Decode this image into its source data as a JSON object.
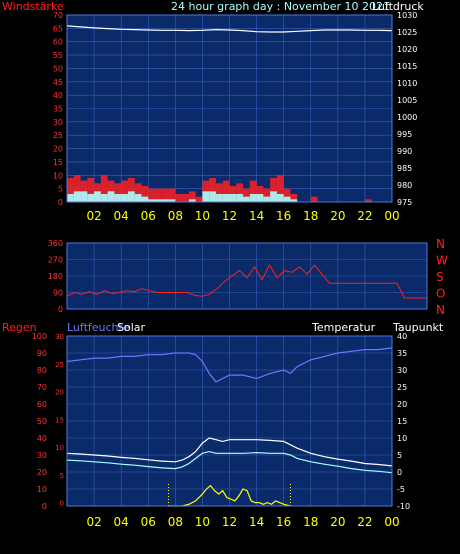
{
  "colors": {
    "background": "#000000",
    "plot_bg": "#0b2a6a",
    "grid": "#3a5fbf",
    "frame": "#4a7ae0",
    "wind": "#ff2020",
    "gust": "#ffffff",
    "pressure": "#ffffff",
    "humidity": "#6a78ff",
    "temperature": "#ffffff",
    "dewpoint": "#a8ffff",
    "solar": "#ffff00",
    "rain": "#ff2020",
    "left_tick": "#ff3030",
    "x_tick": "#ffff00",
    "right_tick": "#ffffff",
    "title": "#a8ffff"
  },
  "chart_data": [
    {
      "type": "line",
      "title": "24 hour graph day : November 10 2021",
      "ylabel_left": "Windstärke",
      "ylabel_right": "Luftdruck",
      "ylim_left": [
        0,
        70
      ],
      "ylim_right": [
        975,
        1030
      ],
      "yticks_left": [
        "0",
        "5",
        "10",
        "15",
        "20",
        "25",
        "30",
        "35",
        "40",
        "45",
        "50",
        "55",
        "60",
        "65",
        "70"
      ],
      "yticks_right": [
        "975",
        "980",
        "985",
        "990",
        "995",
        "1000",
        "1005",
        "1010",
        "1015",
        "1020",
        "1025",
        "1030"
      ],
      "xlim": [
        0,
        24
      ],
      "xticks": [
        "02",
        "04",
        "06",
        "08",
        "10",
        "12",
        "14",
        "16",
        "18",
        "20",
        "22",
        "00"
      ],
      "series": [
        {
          "name": "Luftdruck",
          "axis": "right",
          "color": "#ffffff",
          "x": [
            0,
            1,
            2,
            3,
            4,
            5,
            6,
            7,
            8,
            9,
            10,
            11,
            12,
            13,
            14,
            15,
            16,
            17,
            18,
            19,
            20,
            21,
            22,
            23,
            24
          ],
          "y": [
            1026.8,
            1026.5,
            1026.2,
            1026.0,
            1025.8,
            1025.7,
            1025.6,
            1025.5,
            1025.5,
            1025.4,
            1025.5,
            1025.7,
            1025.6,
            1025.4,
            1025.1,
            1025.0,
            1025.0,
            1025.2,
            1025.4,
            1025.6,
            1025.6,
            1025.6,
            1025.5,
            1025.5,
            1025.4
          ]
        },
        {
          "name": "Wind",
          "axis": "left",
          "color": "#ff2020",
          "x": [
            0,
            0.5,
            1,
            1.5,
            2,
            2.5,
            3,
            3.5,
            4,
            4.5,
            5,
            5.5,
            6,
            6.5,
            7,
            7.5,
            8,
            8.5,
            9,
            9.5,
            10,
            10.5,
            11,
            11.5,
            12,
            12.5,
            13,
            13.5,
            14,
            14.5,
            15,
            15.5,
            16,
            16.5,
            17,
            17.5,
            18,
            18.5,
            19,
            20,
            21,
            22,
            23,
            24
          ],
          "y": [
            9,
            10,
            8,
            9,
            7,
            10,
            8,
            7,
            8,
            9,
            7,
            6,
            5,
            5,
            5,
            5,
            3,
            3,
            4,
            2,
            8,
            9,
            7,
            8,
            6,
            7,
            5,
            8,
            6,
            5,
            9,
            10,
            5,
            3,
            0,
            0,
            2,
            0,
            0,
            0,
            0,
            1,
            0,
            0
          ]
        },
        {
          "name": "Böen",
          "axis": "left",
          "color": "#ffffff",
          "x": [
            0,
            0.5,
            1,
            1.5,
            2,
            2.5,
            3,
            3.5,
            4,
            4.5,
            5,
            5.5,
            6,
            6.5,
            7,
            7.5,
            8,
            8.5,
            9,
            9.5,
            10,
            10.5,
            11,
            11.5,
            12,
            12.5,
            13,
            13.5,
            14,
            14.5,
            15,
            15.5,
            16,
            16.5,
            17
          ],
          "y": [
            3,
            4,
            4,
            3,
            4,
            3,
            4,
            3,
            3,
            4,
            3,
            2,
            1,
            1,
            1,
            1,
            0,
            0,
            1,
            0,
            4,
            4,
            3,
            3,
            3,
            3,
            2,
            3,
            3,
            2,
            4,
            3,
            2,
            1,
            0
          ]
        }
      ]
    },
    {
      "type": "line",
      "ylabel_right": [
        "N",
        "W",
        "S",
        "O",
        "N"
      ],
      "ylim": [
        0,
        360
      ],
      "yticks_left": [
        "0",
        "90",
        "180",
        "270",
        "360"
      ],
      "xlim": [
        0,
        24
      ],
      "series": [
        {
          "name": "Windrichtung",
          "color": "#ff2020",
          "x": [
            0,
            0.5,
            1,
            1.5,
            2,
            2.5,
            3,
            3.5,
            4,
            4.5,
            5,
            5.5,
            6,
            6.5,
            7,
            7.5,
            8,
            8.5,
            9,
            9.5,
            10,
            10.5,
            11,
            11.5,
            12,
            12.5,
            13,
            13.5,
            14,
            14.5,
            15,
            15.5,
            16,
            16.5,
            17,
            17.5,
            18,
            19,
            20,
            21,
            22,
            22.5,
            23,
            24
          ],
          "y": [
            70,
            90,
            80,
            95,
            80,
            100,
            85,
            90,
            100,
            95,
            110,
            100,
            90,
            90,
            90,
            90,
            90,
            75,
            70,
            80,
            110,
            150,
            180,
            210,
            170,
            230,
            160,
            240,
            170,
            210,
            200,
            230,
            190,
            240,
            190,
            140,
            140,
            140,
            140,
            140,
            140,
            60,
            60,
            60
          ]
        }
      ]
    },
    {
      "type": "line",
      "ylabel_left": "Regen",
      "ylabel_left2": "Luftfeuchte",
      "legend_solar": "Solar",
      "ylabel_right": "Temperatur",
      "ylabel_right2": "Taupunkt",
      "ylim_rain": [
        0,
        100
      ],
      "ylim_temp": [
        -10,
        40
      ],
      "yticks_rain": [
        "0",
        "10",
        "20",
        "30",
        "40",
        "50",
        "60",
        "70",
        "80",
        "90",
        "100"
      ],
      "yticks_hum": [
        "0",
        "5",
        "10",
        "15",
        "20",
        "25",
        "30"
      ],
      "yticks_temp": [
        "-10",
        "-5",
        "0",
        "5",
        "10",
        "15",
        "20",
        "25",
        "30",
        "35",
        "40"
      ],
      "xlim": [
        0,
        24
      ],
      "xticks": [
        "02",
        "04",
        "06",
        "08",
        "10",
        "12",
        "14",
        "16",
        "18",
        "20",
        "22",
        "00"
      ],
      "sun_markers_hours": [
        7.5,
        16.5
      ],
      "series": [
        {
          "name": "Luftfeuchte",
          "scale": "percent",
          "color": "#6a78ff",
          "x": [
            0,
            1,
            2,
            3,
            4,
            5,
            6,
            7,
            8,
            8.5,
            9,
            9.5,
            10,
            10.5,
            11,
            11.5,
            12,
            13,
            14,
            15,
            16,
            16.5,
            17,
            18,
            19,
            20,
            21,
            22,
            23,
            24
          ],
          "y": [
            85,
            86,
            87,
            87,
            88,
            88,
            89,
            89,
            90,
            90,
            90,
            89,
            85,
            78,
            73,
            75,
            77,
            77,
            75,
            78,
            80,
            78,
            82,
            86,
            88,
            90,
            91,
            92,
            92,
            93
          ]
        },
        {
          "name": "Temperatur",
          "scale": "temp",
          "color": "#ffffff",
          "x": [
            0,
            1,
            2,
            3,
            4,
            5,
            6,
            7,
            8,
            8.5,
            9,
            9.5,
            10,
            10.5,
            11,
            11.5,
            12,
            13,
            14,
            15,
            16,
            16.5,
            17,
            18,
            19,
            20,
            21,
            22,
            23,
            24
          ],
          "y": [
            5.5,
            5.3,
            5.0,
            4.7,
            4.3,
            4.0,
            3.6,
            3.2,
            3.0,
            3.5,
            4.5,
            6.0,
            8.5,
            10.0,
            9.5,
            9.0,
            9.5,
            9.5,
            9.5,
            9.3,
            9.0,
            8.0,
            7.0,
            5.5,
            4.5,
            3.8,
            3.2,
            2.5,
            2.2,
            1.8
          ]
        },
        {
          "name": "Taupunkt",
          "scale": "temp",
          "color": "#a8ffff",
          "x": [
            0,
            1,
            2,
            3,
            4,
            5,
            6,
            7,
            8,
            8.5,
            9,
            9.5,
            10,
            10.5,
            11,
            11.5,
            12,
            13,
            14,
            15,
            16,
            16.5,
            17,
            18,
            19,
            20,
            21,
            22,
            23,
            24
          ],
          "y": [
            3.5,
            3.3,
            3.0,
            2.7,
            2.3,
            2.0,
            1.6,
            1.2,
            1.0,
            1.5,
            2.5,
            4.0,
            5.5,
            6.0,
            5.5,
            5.5,
            5.5,
            5.5,
            5.7,
            5.5,
            5.5,
            5.0,
            4.0,
            3.0,
            2.3,
            1.7,
            1.0,
            0.5,
            0.2,
            -0.2
          ]
        },
        {
          "name": "Solar",
          "scale": "percent",
          "color": "#ffff00",
          "x": [
            7.5,
            8,
            8.5,
            9,
            9.5,
            10,
            10.3,
            10.6,
            10.9,
            11.2,
            11.5,
            11.8,
            12.1,
            12.4,
            12.7,
            13,
            13.3,
            13.6,
            13.9,
            14.2,
            14.5,
            14.8,
            15.1,
            15.4,
            15.7,
            16,
            16.5
          ],
          "y": [
            0,
            0,
            0,
            1,
            3,
            7,
            10,
            12,
            9,
            7,
            9,
            5,
            4,
            3,
            6,
            10,
            9,
            3,
            2,
            2,
            1,
            2,
            1,
            3,
            2,
            1,
            0
          ]
        },
        {
          "name": "Regen",
          "scale": "percent",
          "color": "#ff2020",
          "x": [
            0,
            24
          ],
          "y": [
            0,
            0
          ]
        }
      ]
    }
  ]
}
